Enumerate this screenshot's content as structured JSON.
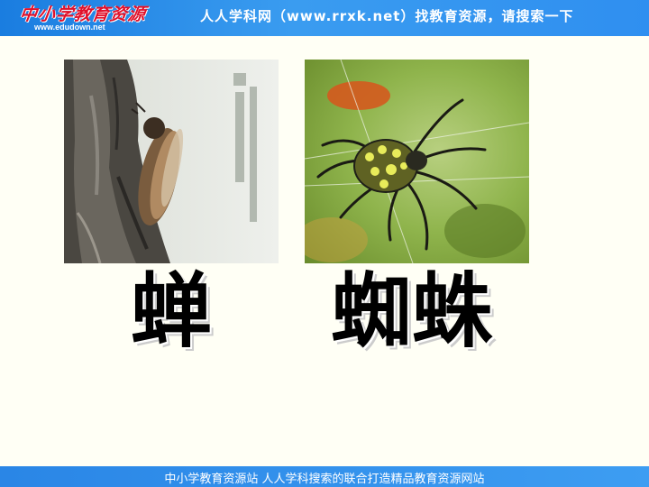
{
  "header": {
    "logo_text": "中小学教育资源",
    "logo_url": "www.edudown.net",
    "slogan": "人人学科网（www.rrxk.net）找教育资源，请搜索一下"
  },
  "cards": [
    {
      "photo": "cicada-on-tree-photo",
      "caption": "蝉"
    },
    {
      "photo": "spider-on-web-photo",
      "caption": "蜘蛛"
    }
  ],
  "footer": {
    "text": "中小学教育资源站 人人学科搜索的联合打造精品教育资源网站"
  }
}
